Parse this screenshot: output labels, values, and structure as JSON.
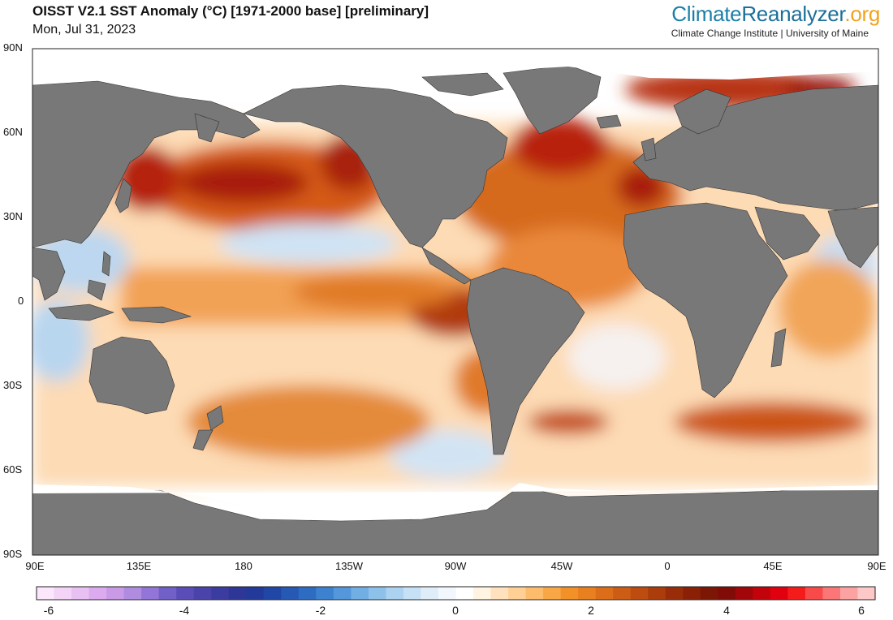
{
  "header": {
    "title": "OISST V2.1 SST Anomaly (°C) [1971-2000 base] [preliminary]",
    "date": "Mon, Jul 31, 2023",
    "brand_part1": "Climate",
    "brand_part2": "Reanalyzer",
    "brand_part3": ".org",
    "brand_sub": "Climate Change Institute | University of Maine"
  },
  "axes": {
    "lat_labels": [
      "90N",
      "60N",
      "30N",
      "0",
      "30S",
      "60S",
      "90S"
    ],
    "lon_labels": [
      "90E",
      "135E",
      "180",
      "135W",
      "90W",
      "45W",
      "0",
      "45E",
      "90E"
    ]
  },
  "colorbar": {
    "tick_labels": [
      "-6",
      "-4",
      "-2",
      "0",
      "2",
      "4",
      "6"
    ],
    "range": [
      -6,
      6
    ],
    "colors": [
      "#fbe6fb",
      "#f3d4f6",
      "#e9c0f2",
      "#dcaaee",
      "#c99ae6",
      "#b08ce0",
      "#9275d6",
      "#7060c8",
      "#5a4db8",
      "#4a43aa",
      "#3c3ca0",
      "#2f3796",
      "#243a9a",
      "#2147a6",
      "#2559b4",
      "#2e6cc2",
      "#3d82cf",
      "#5497da",
      "#70aee3",
      "#8ec1ea",
      "#abd2f0",
      "#c6e1f5",
      "#dfedf9",
      "#f1f7fc",
      "#ffffff",
      "#fff3e1",
      "#ffe2bd",
      "#ffd095",
      "#fdbb6c",
      "#f9a646",
      "#f39129",
      "#e8801f",
      "#dc6e19",
      "#cd5d14",
      "#bd4c10",
      "#ab3c0c",
      "#992d09",
      "#8a2006",
      "#7c1605",
      "#800c08",
      "#a0060a",
      "#c2030c",
      "#e00010",
      "#f41b1b",
      "#f94a4a",
      "#fb7676",
      "#fca2a2",
      "#fdc8c8"
    ]
  }
}
